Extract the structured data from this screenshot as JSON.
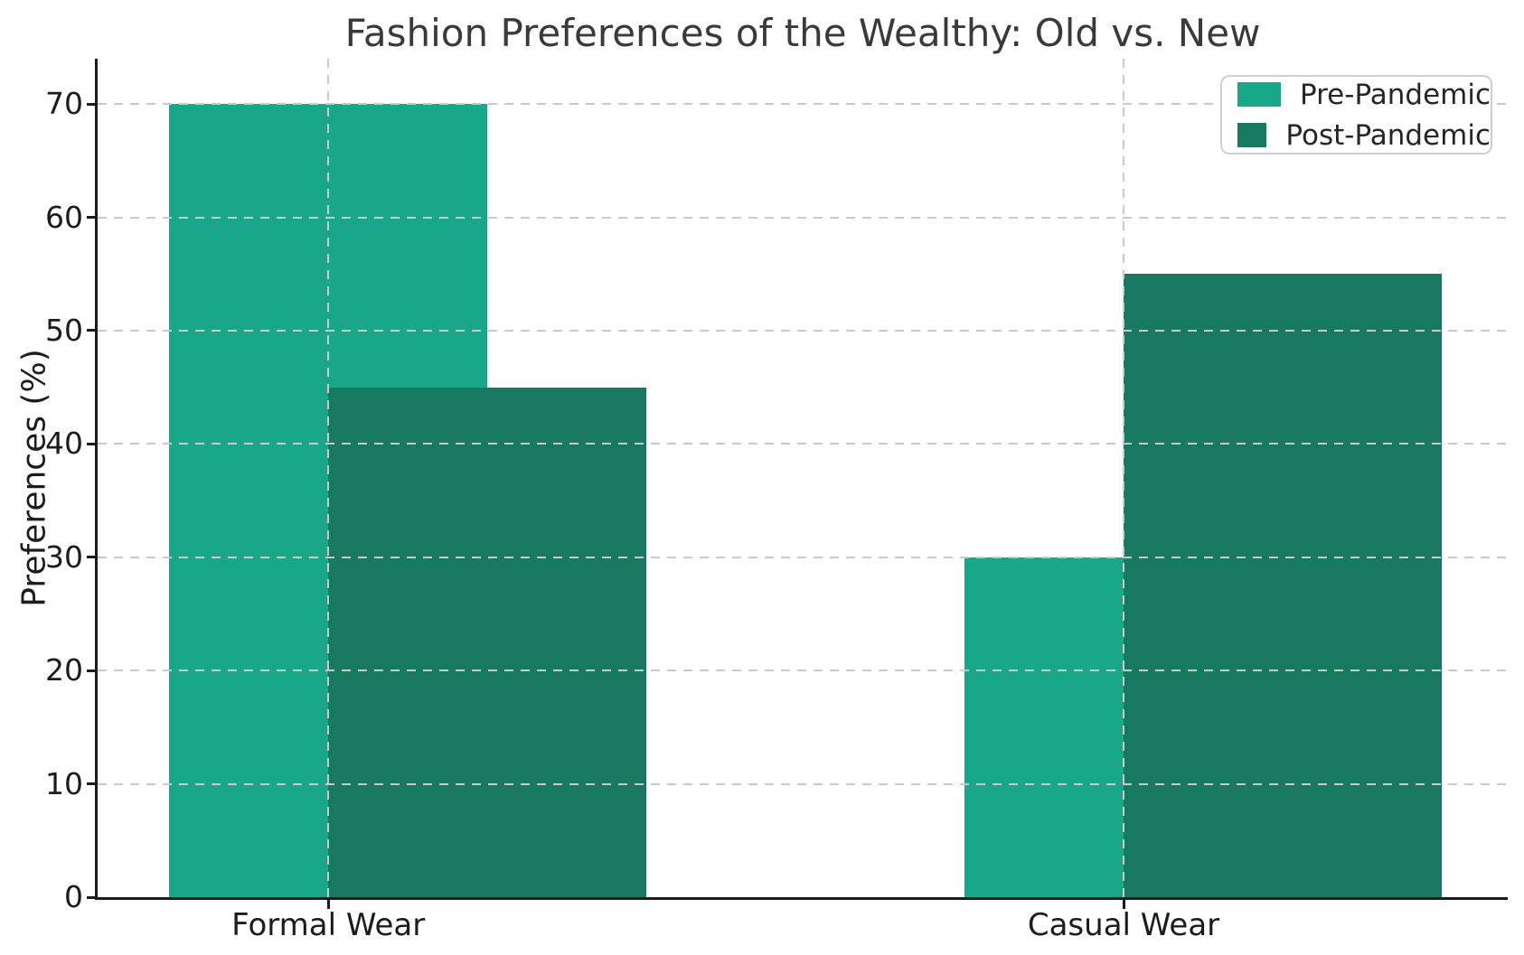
{
  "chart_data": {
    "type": "bar",
    "title": "Fashion Preferences of the Wealthy: Old vs. New",
    "xlabel": "",
    "ylabel": "Preferences (%)",
    "categories": [
      "Formal Wear",
      "Casual Wear"
    ],
    "series": [
      {
        "name": "Pre-Pandemic",
        "values": [
          70,
          30
        ],
        "color": "#19a78a",
        "offset": 0.0
      },
      {
        "name": "Post-Pandemic",
        "values": [
          45,
          55
        ],
        "color": "#17795f",
        "offset": 0.2
      }
    ],
    "bar_width": 0.4,
    "xlim": [
      -0.29,
      1.483
    ],
    "ylim": [
      0,
      74
    ],
    "yticks": [
      0,
      10,
      20,
      30,
      40,
      50,
      60,
      70
    ],
    "grid": "dashed gridlines on both axes, drawn above bars",
    "legend_position": "upper right",
    "style": {
      "pre_pandemic_color": "#19a78a",
      "post_pandemic_color": "#17795f",
      "grid_color": "#c9c9c9",
      "spine_color": "#1b1b1b",
      "tick_text_color": "#1c1c1c",
      "title_color": "#3a3a3a",
      "background": "#ffffff"
    }
  }
}
